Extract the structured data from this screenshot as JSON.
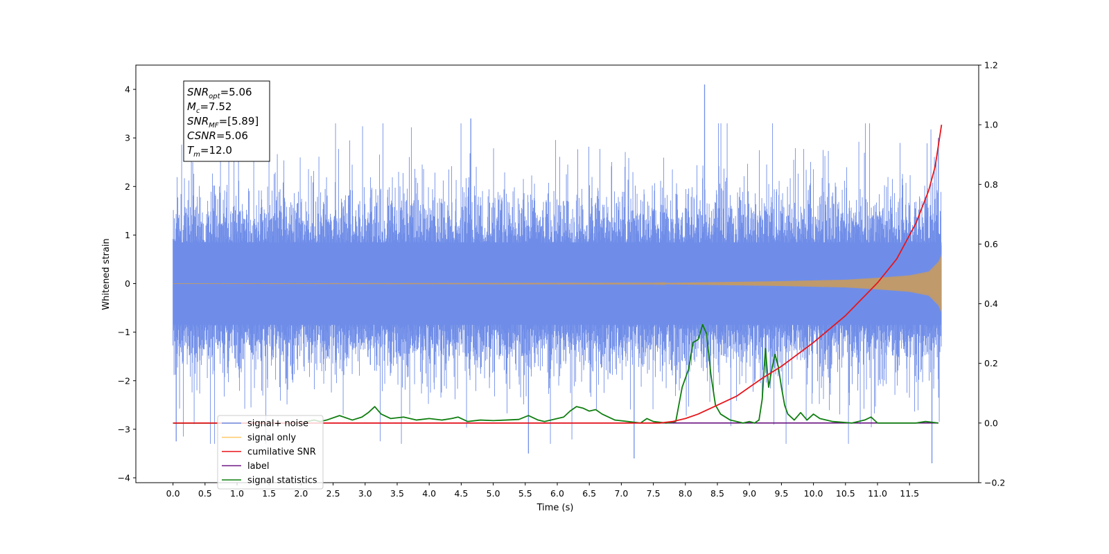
{
  "chart_data": {
    "type": "line",
    "xlabel": "Time (s)",
    "ylabel": "Whitened strain",
    "xlim": [
      -0.58,
      12.58
    ],
    "ylim": [
      -4.1,
      4.5
    ],
    "ylim_right": [
      -0.2,
      1.2
    ],
    "x_ticks": [
      0.0,
      0.5,
      1.0,
      1.5,
      2.0,
      2.5,
      3.0,
      3.5,
      4.0,
      4.5,
      5.0,
      5.5,
      6.0,
      6.5,
      7.0,
      7.5,
      8.0,
      8.5,
      9.0,
      9.5,
      10.0,
      10.5,
      11.0,
      11.5
    ],
    "x_tick_labels": [
      "0.0",
      "0.5",
      "1.0",
      "1.5",
      "2.0",
      "2.5",
      "3.0",
      "3.5",
      "4.0",
      "4.5",
      "5.0",
      "5.5",
      "6.0",
      "6.5",
      "7.0",
      "7.5",
      "8.0",
      "8.5",
      "9.0",
      "9.5",
      "10.0",
      "10.5",
      "11.0",
      "11.5"
    ],
    "y_ticks": [
      4,
      3,
      2,
      1,
      0,
      -1,
      -2,
      -3,
      -4
    ],
    "y_tick_labels": [
      "4",
      "3",
      "2",
      "1",
      "0",
      "−1",
      "−2",
      "−3",
      "−4"
    ],
    "y_ticks_right": [
      1.2,
      1.0,
      0.8,
      0.6,
      0.4,
      0.2,
      0.0,
      -0.2
    ],
    "y_tick_labels_right": [
      "1.2",
      "1.0",
      "0.8",
      "0.6",
      "0.4",
      "0.2",
      "0.0",
      "−0.2"
    ],
    "grid": false,
    "legend_position": "lower-left",
    "annotation_lines": [
      {
        "base": "SNR",
        "sub": "opt",
        "rest": "=5.06"
      },
      {
        "base": "M",
        "sub": "c",
        "rest": "=7.52"
      },
      {
        "base": "SNR",
        "sub": "MF",
        "rest": "=[5.89]"
      },
      {
        "base": "CSNR",
        "sub": "",
        "rest": "=5.06"
      },
      {
        "base": "T",
        "sub": "m",
        "rest": "=12.0"
      }
    ],
    "series": [
      {
        "name": "signal+ noise",
        "color": "#6f8de8",
        "axis": "left",
        "note_visual": "dense random noise band roughly between -2.2 and 2.2 with spikes to about 4.1 and -3.6",
        "x_range": [
          0.0,
          12.0
        ],
        "notable_peaks": [
          {
            "x": 8.3,
            "y": 4.1
          },
          {
            "x": 4.65,
            "y": 3.4
          },
          {
            "x": 11.95,
            "y": 3.0
          },
          {
            "x": 7.2,
            "y": -3.6
          },
          {
            "x": 11.85,
            "y": -3.7
          },
          {
            "x": 5.55,
            "y": -3.5
          },
          {
            "x": 0.05,
            "y": -3.25
          }
        ]
      },
      {
        "name": "signal only",
        "color": "#f5b041",
        "axis": "left",
        "note_visual": "chirp, near-zero until about 7.5 s then growing to about ±0.6 at 12 s",
        "envelope": {
          "x": [
            0.0,
            7.5,
            8.5,
            9.5,
            10.5,
            11.0,
            11.5,
            11.8,
            11.95,
            12.0
          ],
          "y": [
            0.0,
            0.01,
            0.03,
            0.05,
            0.08,
            0.12,
            0.17,
            0.25,
            0.45,
            0.6
          ]
        }
      },
      {
        "name": "cumilative SNR",
        "color": "#e8141a",
        "axis": "right",
        "x": [
          0.0,
          7.6,
          7.8,
          8.0,
          8.2,
          8.5,
          8.8,
          9.0,
          9.2,
          9.5,
          10.0,
          10.5,
          11.0,
          11.3,
          11.6,
          11.8,
          11.9,
          12.0
        ],
        "y": [
          0.0,
          0.0,
          0.005,
          0.015,
          0.03,
          0.06,
          0.09,
          0.12,
          0.15,
          0.19,
          0.27,
          0.36,
          0.47,
          0.55,
          0.67,
          0.78,
          0.86,
          1.0
        ]
      },
      {
        "name": "label",
        "color": "#6a1480",
        "axis": "right",
        "x": [
          0.0,
          11.95
        ],
        "y": [
          0.0,
          0.0
        ]
      },
      {
        "name": "signal statistics",
        "color": "#0e7d0e",
        "axis": "right",
        "x": [
          0.0,
          2.0,
          2.2,
          2.3,
          2.4,
          2.6,
          2.8,
          2.95,
          3.05,
          3.15,
          3.25,
          3.4,
          3.6,
          3.8,
          4.0,
          4.2,
          4.35,
          4.45,
          4.6,
          4.8,
          5.0,
          5.2,
          5.4,
          5.55,
          5.7,
          5.8,
          6.0,
          6.1,
          6.2,
          6.3,
          6.4,
          6.5,
          6.6,
          6.7,
          6.9,
          7.1,
          7.3,
          7.4,
          7.5,
          7.7,
          7.85,
          7.95,
          8.05,
          8.12,
          8.2,
          8.27,
          8.33,
          8.4,
          8.47,
          8.55,
          8.7,
          8.9,
          9.0,
          9.08,
          9.15,
          9.2,
          9.25,
          9.3,
          9.35,
          9.4,
          9.45,
          9.5,
          9.55,
          9.6,
          9.7,
          9.8,
          9.9,
          10.0,
          10.1,
          10.3,
          10.6,
          10.8,
          10.9,
          11.0,
          11.3,
          11.6,
          11.75,
          11.95
        ],
        "y": [
          0.0,
          0.0,
          0.01,
          0.005,
          0.01,
          0.025,
          0.01,
          0.02,
          0.035,
          0.055,
          0.03,
          0.015,
          0.02,
          0.01,
          0.015,
          0.01,
          0.015,
          0.02,
          0.005,
          0.01,
          0.008,
          0.01,
          0.012,
          0.025,
          0.01,
          0.005,
          0.015,
          0.02,
          0.04,
          0.055,
          0.05,
          0.04,
          0.045,
          0.03,
          0.01,
          0.005,
          0.0,
          0.015,
          0.005,
          0.0,
          0.005,
          0.12,
          0.18,
          0.27,
          0.28,
          0.33,
          0.3,
          0.16,
          0.06,
          0.03,
          0.01,
          0.0,
          0.005,
          0.0,
          0.01,
          0.08,
          0.25,
          0.12,
          0.18,
          0.23,
          0.19,
          0.12,
          0.06,
          0.03,
          0.01,
          0.035,
          0.01,
          0.03,
          0.015,
          0.005,
          0.0,
          0.01,
          0.02,
          0.0,
          0.0,
          0.0,
          0.005,
          0.0
        ]
      }
    ]
  }
}
